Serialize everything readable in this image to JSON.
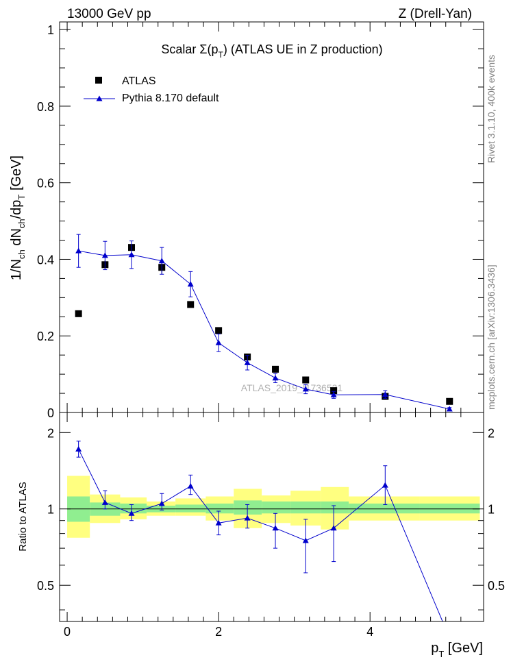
{
  "header": {
    "left": "13000 GeV pp",
    "right": "Z (Drell-Yan)"
  },
  "side": {
    "rivet": "Rivet 3.1.10,  400k events",
    "mcplots": "mcplots.cern.ch [arXiv:1306.3436]"
  },
  "watermark": "ATLAS_2019_I1736531",
  "colors": {
    "mc": "#0000cc",
    "band_inner": "#90ee90",
    "band_outer": "#ffff80",
    "data": "#000000"
  },
  "chart_data": [
    {
      "type": "scatter",
      "title_pre": "Scalar ",
      "title_sigma": "Σ(p",
      "title_sub": "T",
      "title_post": ") (ATLAS UE in Z production)",
      "ylabel": {
        "p1": "1/N",
        "s1": "ch",
        "p2": " dN",
        "s2": "ch",
        "p3": "/dp",
        "s3": "T",
        "p4": " [GeV]"
      },
      "xlim": [
        -0.1,
        5.5
      ],
      "ylim": [
        0,
        1.02
      ],
      "yticks": [
        0,
        0.2,
        0.4,
        0.6,
        0.8,
        1
      ],
      "ytick_labels": [
        "0",
        "0.2",
        "0.4",
        "0.6",
        "0.8",
        "1"
      ],
      "legend": {
        "placement": "top-left",
        "data_label": "ATLAS",
        "mc_label": "Pythia 8.170 default"
      },
      "series": [
        {
          "name": "ATLAS",
          "x": [
            0.15,
            0.5,
            0.85,
            1.25,
            1.63,
            2.0,
            2.38,
            2.75,
            3.15,
            3.52,
            4.2,
            5.05
          ],
          "values": [
            0.258,
            0.386,
            0.431,
            0.379,
            0.282,
            0.214,
            0.145,
            0.113,
            0.085,
            0.057,
            0.042,
            0.029
          ],
          "err": [
            0.004,
            0.012,
            0.015,
            0.018,
            0.006,
            0.004,
            0.003,
            0.003,
            0.002,
            0.002,
            0.002,
            0.001
          ]
        },
        {
          "name": "Pythia 8.170 default",
          "x": [
            0.15,
            0.5,
            0.85,
            1.25,
            1.63,
            2.0,
            2.38,
            2.75,
            3.15,
            3.52,
            4.2,
            5.05
          ],
          "values": [
            0.422,
            0.41,
            0.412,
            0.396,
            0.335,
            0.182,
            0.13,
            0.09,
            0.061,
            0.046,
            0.047,
            0.009
          ],
          "err": [
            0.043,
            0.037,
            0.036,
            0.035,
            0.033,
            0.023,
            0.019,
            0.012,
            0.012,
            0.009,
            0.01,
            0.004
          ]
        }
      ]
    },
    {
      "type": "line",
      "ylabel": "Ratio to ATLAS",
      "xlabel_main": "p",
      "xlabel_sub": "T",
      "xlabel_post": " [GeV]",
      "xlim": [
        -0.1,
        5.5
      ],
      "ylim": [
        0.36,
        2.4
      ],
      "log_scale_y": true,
      "xticks": [
        0,
        2,
        4
      ],
      "xtick_labels": [
        "0",
        "2",
        "4"
      ],
      "yticks": [
        0.5,
        1,
        2
      ],
      "ytick_labels": [
        "0.5",
        "1",
        "2"
      ],
      "bands": {
        "edges": [
          0,
          0.3,
          0.7,
          1.05,
          1.43,
          1.83,
          2.2,
          2.57,
          2.95,
          3.35,
          3.72,
          4.65,
          5.45
        ],
        "inner_lo": [
          0.89,
          0.94,
          0.96,
          0.97,
          0.97,
          0.96,
          0.95,
          0.96,
          0.96,
          0.96,
          0.96,
          0.96
        ],
        "inner_hi": [
          1.12,
          1.06,
          1.05,
          1.03,
          1.04,
          1.05,
          1.08,
          1.07,
          1.07,
          1.07,
          1.05,
          1.05
        ],
        "outer_lo": [
          0.77,
          0.88,
          0.91,
          0.94,
          0.94,
          0.9,
          0.84,
          0.88,
          0.86,
          0.83,
          0.9,
          0.9
        ],
        "outer_hi": [
          1.35,
          1.14,
          1.11,
          1.07,
          1.1,
          1.12,
          1.2,
          1.13,
          1.18,
          1.22,
          1.12,
          1.12
        ]
      },
      "series": [
        {
          "name": "Pythia 8.170 default",
          "x": [
            0.15,
            0.5,
            0.85,
            1.25,
            1.63,
            2.0,
            2.38,
            2.75,
            3.15,
            3.52,
            4.2,
            5.05
          ],
          "values": [
            1.72,
            1.06,
            0.96,
            1.05,
            1.23,
            0.88,
            0.92,
            0.84,
            0.75,
            0.84,
            1.24,
            0.31
          ],
          "err_lo": [
            0.12,
            0.06,
            0.06,
            0.06,
            0.09,
            0.09,
            0.08,
            0.14,
            0.19,
            0.22,
            0.2,
            0.0
          ],
          "err_hi": [
            0.13,
            0.12,
            0.08,
            0.1,
            0.13,
            0.1,
            0.12,
            0.12,
            0.16,
            0.19,
            0.24,
            0.0
          ]
        }
      ]
    }
  ]
}
